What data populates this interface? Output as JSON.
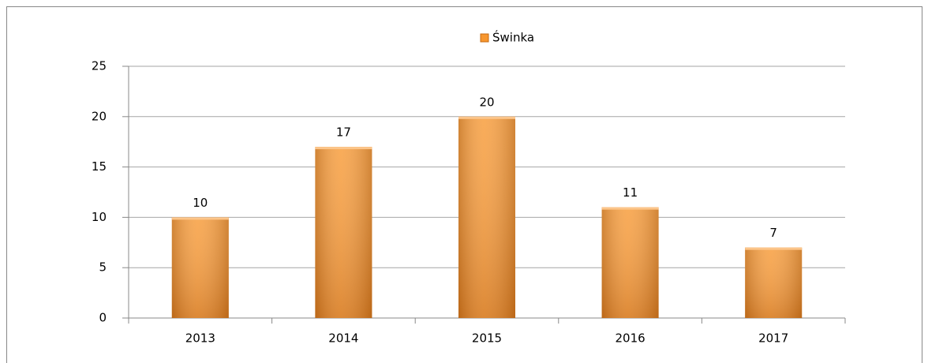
{
  "chart_data": {
    "type": "bar",
    "categories": [
      "2013",
      "2014",
      "2015",
      "2016",
      "2017"
    ],
    "series": [
      {
        "name": "Świnka",
        "color": "#f7962e",
        "values": [
          10,
          17,
          20,
          11,
          7
        ]
      }
    ],
    "ylim": [
      0,
      25
    ],
    "yticks": [
      0,
      5,
      10,
      15,
      20,
      25
    ],
    "grid": true,
    "legend": "top"
  }
}
